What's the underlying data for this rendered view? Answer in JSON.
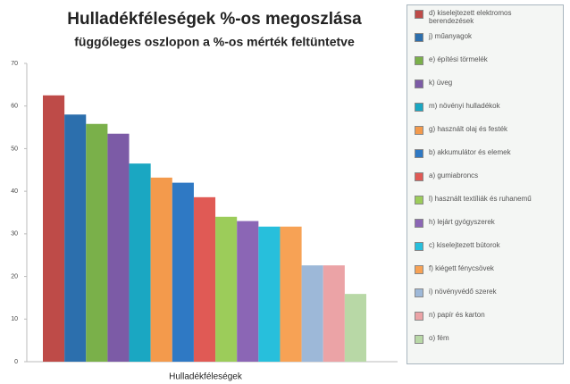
{
  "chart_data": {
    "type": "bar",
    "title": "Hulladékféleségek %-os megoszlása",
    "subtitle": "függőleges oszlopon a %-os mérték feltüntetve",
    "x_label": "Hulladékféleségek",
    "categories": [
      "d) kiselejtezett elektromos berendezések",
      "j) műanyagok",
      "e) építési törmelék",
      "k) üveg",
      "m) növényi hulladékok",
      "g) használt olaj és festék",
      "b) akkumulátor és elemek",
      "a) gumiabroncs",
      "l) használt textíliák és ruhanemű",
      "h) lejárt gyógyszerek",
      "c) kiselejtezett bútorok",
      "f) kiégett fénycsövek",
      "i) növényvédő szerek",
      "n) papír és karton",
      "o) fém"
    ],
    "values": [
      62.5,
      58,
      55.8,
      53.5,
      46.5,
      43.2,
      42,
      38.6,
      34,
      33,
      31.7,
      31.7,
      22.6,
      22.6,
      15.9
    ],
    "colors": [
      "#be4b48",
      "#2c6fad",
      "#7ab04a",
      "#7c5ba6",
      "#1aa7c2",
      "#f39a4c",
      "#2f79c4",
      "#e05a55",
      "#9ccc5a",
      "#8b66b5",
      "#27bfdc",
      "#f7a255",
      "#9db8d8",
      "#eba3a6",
      "#b8d8a6"
    ],
    "ylim": [
      0,
      70
    ],
    "yticks": [
      0,
      10,
      20,
      30,
      40,
      50,
      60,
      70
    ],
    "grid": false
  }
}
